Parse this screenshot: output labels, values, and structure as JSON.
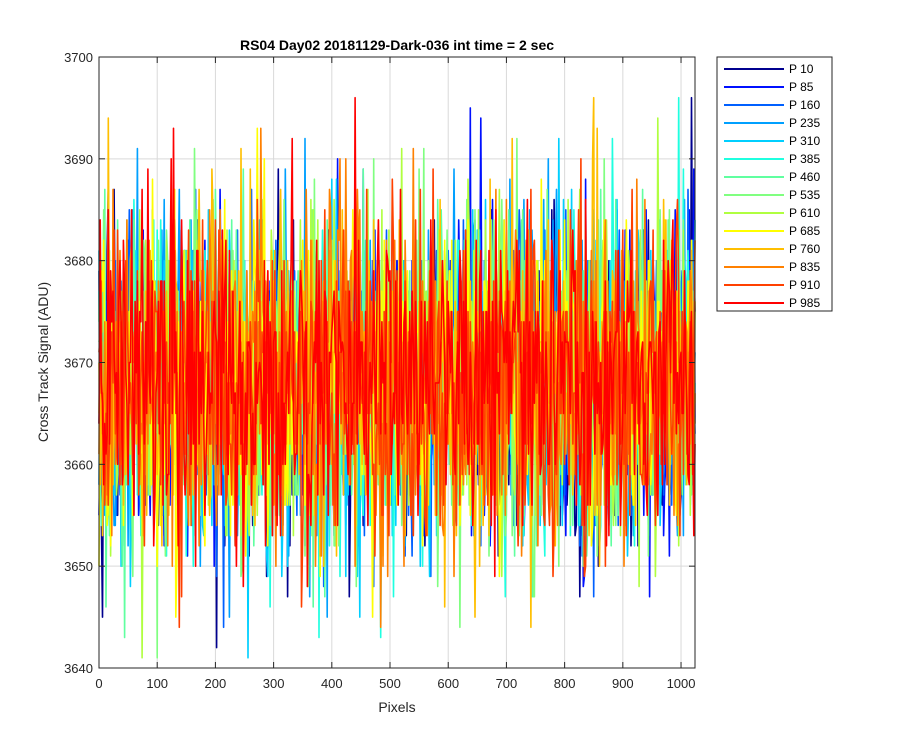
{
  "chart_data": {
    "type": "line",
    "title": "RS04 Day02 20181129-Dark-036 int time = 2 sec",
    "xlabel": "Pixels",
    "ylabel": "Cross Track Signal (ADU)",
    "xlim": [
      0,
      1024
    ],
    "ylim": [
      3640,
      3700
    ],
    "xticks": [
      0,
      100,
      200,
      300,
      400,
      500,
      600,
      700,
      800,
      900,
      1000
    ],
    "yticks": [
      3640,
      3650,
      3660,
      3670,
      3680,
      3690,
      3700
    ],
    "grid": true,
    "legend_position": "outside-top-right",
    "noise_summary": {
      "mean": 3668,
      "typical_min": 3650,
      "typical_max": 3686,
      "n_points": 1024
    },
    "series": [
      {
        "name": "P 10",
        "color": "#00008f"
      },
      {
        "name": "P 85",
        "color": "#0010ff"
      },
      {
        "name": "P 160",
        "color": "#0060ff"
      },
      {
        "name": "P 235",
        "color": "#00a0ff"
      },
      {
        "name": "P 310",
        "color": "#00cfff"
      },
      {
        "name": "P 385",
        "color": "#1fffe0"
      },
      {
        "name": "P 460",
        "color": "#60ffa0"
      },
      {
        "name": "P 535",
        "color": "#80ff80"
      },
      {
        "name": "P 610",
        "color": "#b0ff40"
      },
      {
        "name": "P 685",
        "color": "#ffff00"
      },
      {
        "name": "P 760",
        "color": "#ffbf00"
      },
      {
        "name": "P 835",
        "color": "#ff8000"
      },
      {
        "name": "P 910",
        "color": "#ff4000"
      },
      {
        "name": "P 985",
        "color": "#ff0000"
      }
    ]
  }
}
